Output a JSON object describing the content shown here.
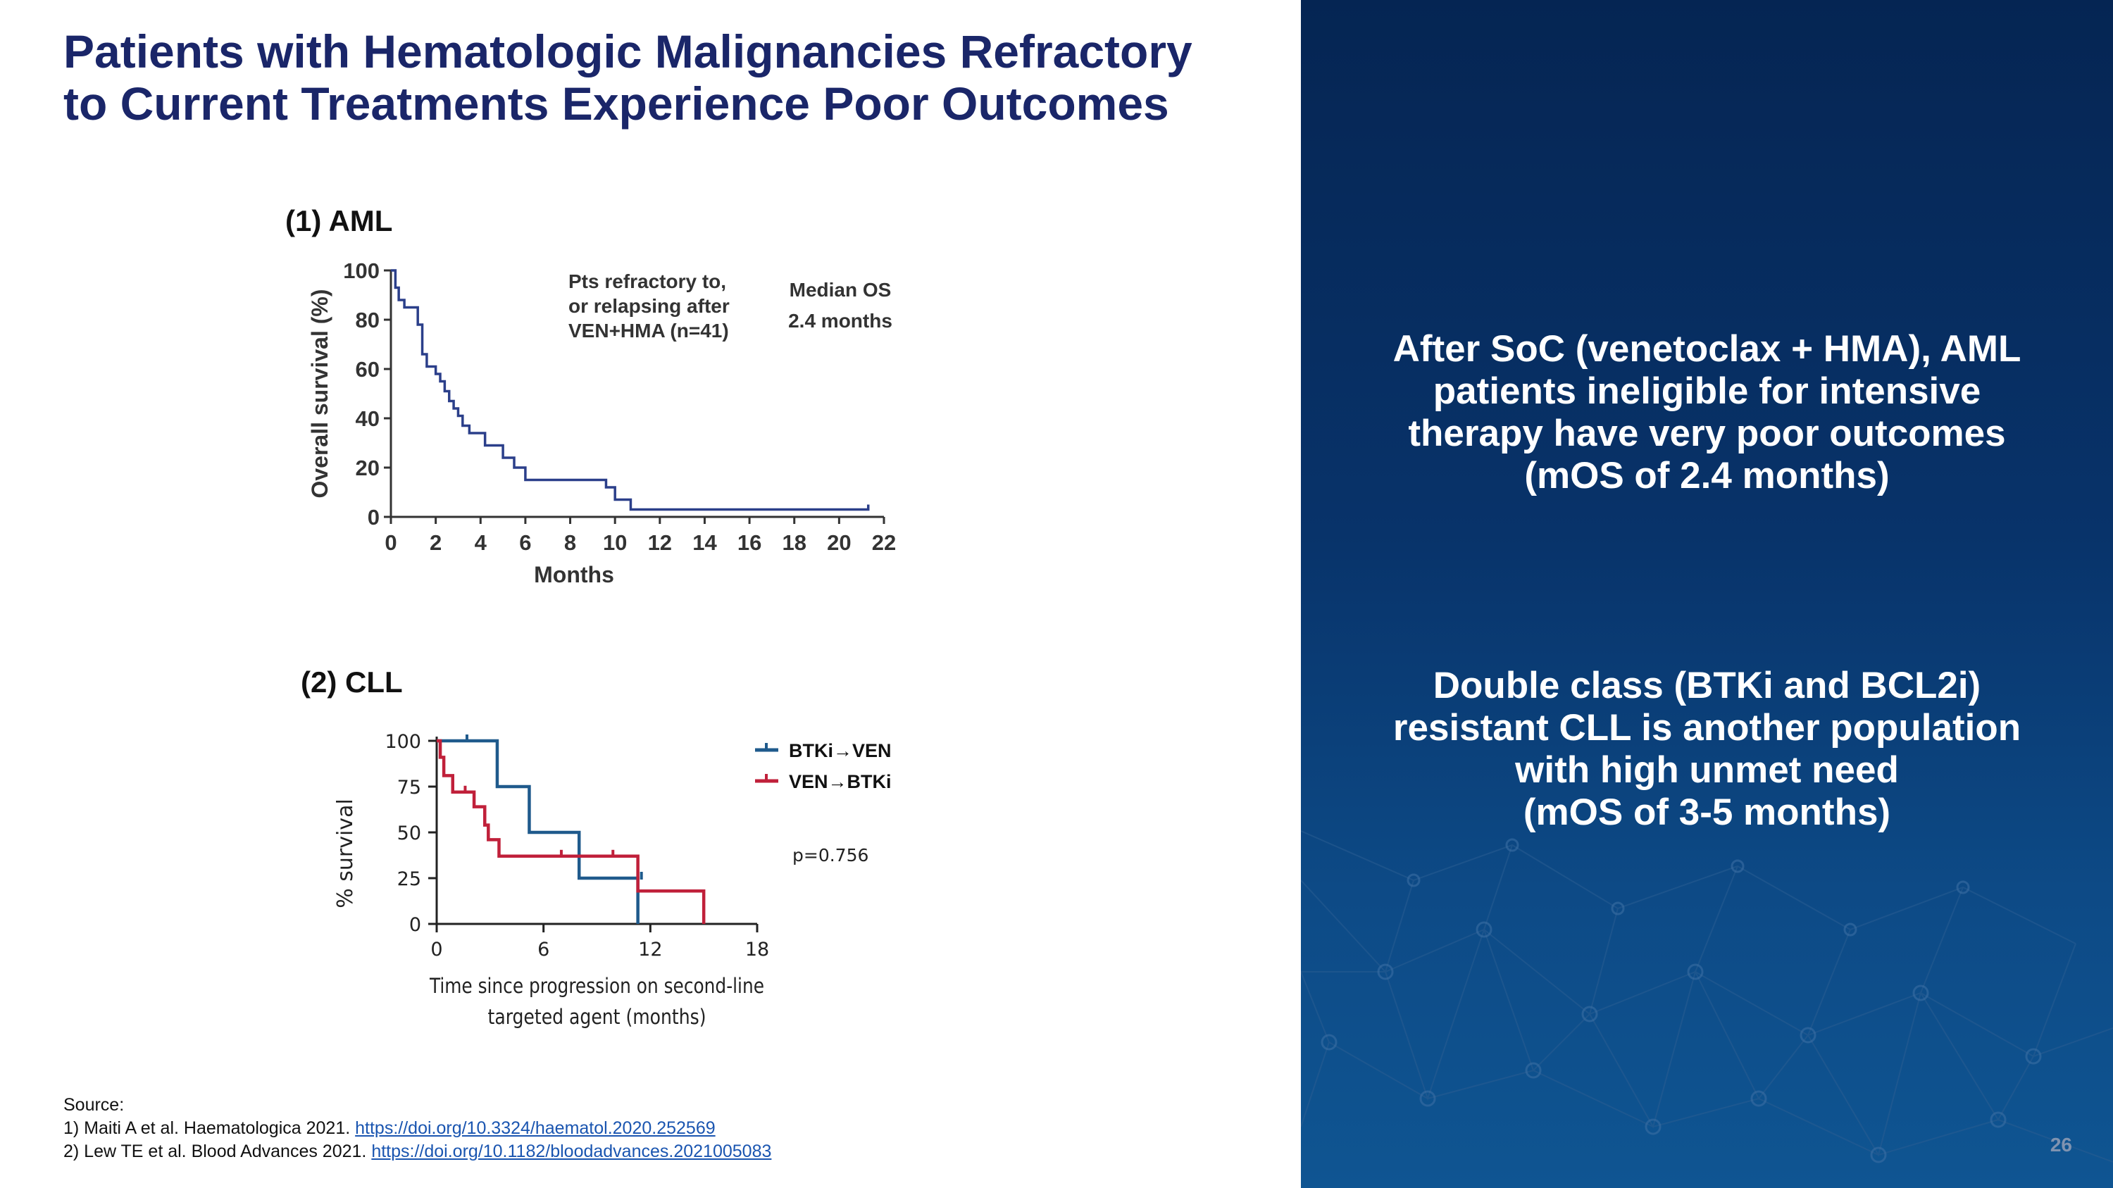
{
  "slide": {
    "title_line1": "Patients with Hematologic Malignancies Refractory",
    "title_line2": "to Current Treatments Experience Poor Outcomes",
    "page_number": "26"
  },
  "panel": {
    "message1": [
      "After SoC (venetoclax + HMA), AML",
      "patients ineligible for intensive",
      "therapy have very poor outcomes",
      "(mOS of 2.4 months)"
    ],
    "message2": [
      "Double class (BTKi and BCL2i)",
      "resistant CLL is another population",
      "with high unmet need",
      "(mOS of 3-5 months)"
    ],
    "colors": {
      "background": "#052553",
      "text": "#ffffff"
    }
  },
  "source": {
    "heading": "Source:",
    "refs": [
      {
        "text": "1) Maiti A et al. Haematologica 2021. ",
        "link": "https://doi.org/10.3324/haematol.2020.252569"
      },
      {
        "text": "2) Lew TE et al. Blood Advances 2021. ",
        "link": "https://doi.org/10.1182/bloodadvances.2021005083"
      }
    ]
  },
  "chart_data": [
    {
      "type": "line",
      "panel_label": "(1)   AML",
      "xlabel": "Months",
      "ylabel": "Overall survival (%)",
      "xlim": [
        0,
        22
      ],
      "ylim": [
        0,
        100
      ],
      "xticks": [
        0,
        2,
        4,
        6,
        8,
        10,
        12,
        14,
        16,
        18,
        20,
        22
      ],
      "yticks": [
        0,
        20,
        40,
        60,
        80,
        100
      ],
      "annotation_lines": [
        "Pts refractory to,",
        "or relapsing after",
        "VEN+HMA (n=41)"
      ],
      "median_label": "Median  OS",
      "median_value": "2.4 months",
      "series": [
        {
          "name": "VEN+HMA",
          "color": "#2b3f8a",
          "step_x": [
            0,
            0.2,
            0.35,
            0.6,
            1.2,
            1.4,
            1.6,
            2.0,
            2.2,
            2.4,
            2.6,
            2.8,
            3.0,
            3.2,
            3.5,
            4.2,
            5.0,
            5.5,
            6.0,
            9.6,
            10.0,
            10.7,
            21.3
          ],
          "step_y": [
            100,
            93,
            88,
            85,
            78,
            66,
            61,
            58,
            55,
            51,
            47,
            44,
            41,
            37,
            34,
            29,
            24,
            20,
            15,
            12,
            7,
            3,
            5
          ]
        }
      ]
    },
    {
      "type": "line",
      "panel_label": "(2)  CLL",
      "xlabel_lines": [
        "Time since progression on second-line",
        "targeted agent (months)"
      ],
      "ylabel": "% survival",
      "xlim": [
        0,
        18
      ],
      "ylim": [
        0,
        100
      ],
      "xticks": [
        0,
        6,
        12,
        18
      ],
      "yticks": [
        0,
        25,
        50,
        75,
        100
      ],
      "annotation": "p=0.756",
      "series": [
        {
          "name": "BTKi→VEN",
          "color": "#1f5a8c",
          "step_x": [
            0,
            3.4,
            5.2,
            8.0,
            11.3
          ],
          "step_y": [
            100,
            75,
            50,
            25,
            0
          ],
          "censor_x": [
            1.7,
            11.5
          ],
          "censor_y": [
            100,
            25
          ]
        },
        {
          "name": "VEN→BTKi",
          "color": "#c0203a",
          "step_x": [
            0,
            0.2,
            0.4,
            0.9,
            2.1,
            2.7,
            2.9,
            3.5,
            11.3,
            15.0
          ],
          "step_y": [
            100,
            91,
            81,
            72,
            64,
            54,
            46,
            37,
            18,
            0
          ],
          "censor_x": [
            1.6,
            7.0,
            9.9
          ],
          "censor_y": [
            72,
            37,
            37
          ]
        }
      ]
    }
  ]
}
